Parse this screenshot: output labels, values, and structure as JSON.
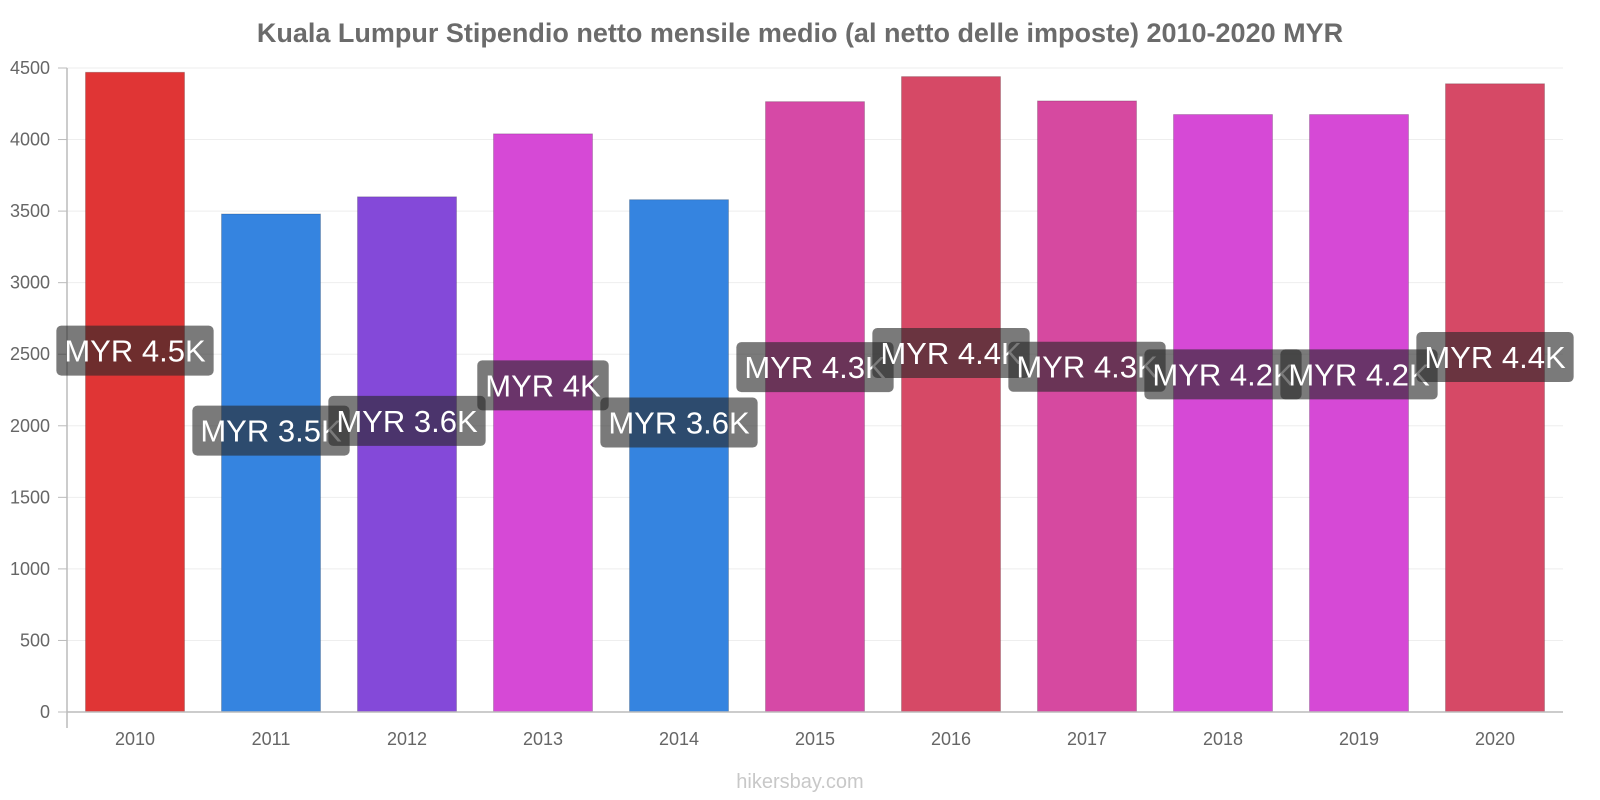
{
  "chart_data": {
    "type": "bar",
    "title": "Kuala Lumpur Stipendio netto mensile medio (al netto delle imposte) 2010-2020 MYR",
    "xlabel": "",
    "ylabel": "",
    "categories": [
      "2010",
      "2011",
      "2012",
      "2013",
      "2014",
      "2015",
      "2016",
      "2017",
      "2018",
      "2019",
      "2020"
    ],
    "values": [
      4470,
      3480,
      3600,
      4040,
      3580,
      4265,
      4440,
      4270,
      4175,
      4175,
      4390
    ],
    "data_labels": [
      "MYR 4.5K",
      "MYR 3.5K",
      "MYR 3.6K",
      "MYR 4K",
      "MYR 3.6K",
      "MYR 4.3K",
      "MYR 4.4K",
      "MYR 4.3K",
      "MYR 4.2K",
      "MYR 4.2K",
      "MYR 4.4K"
    ],
    "bar_colors": [
      "#e03535",
      "#3584e0",
      "#8449d9",
      "#d649d6",
      "#3584e0",
      "#d649a6",
      "#d64966",
      "#d649a0",
      "#d649d6",
      "#d649d6",
      "#d64966"
    ],
    "ylim": [
      0,
      4500
    ],
    "yticks": [
      0,
      500,
      1000,
      1500,
      2000,
      2500,
      3000,
      3500,
      4000,
      4500
    ],
    "grid": true,
    "legend": "none"
  },
  "footer": {
    "source": "hikersbay.com"
  }
}
